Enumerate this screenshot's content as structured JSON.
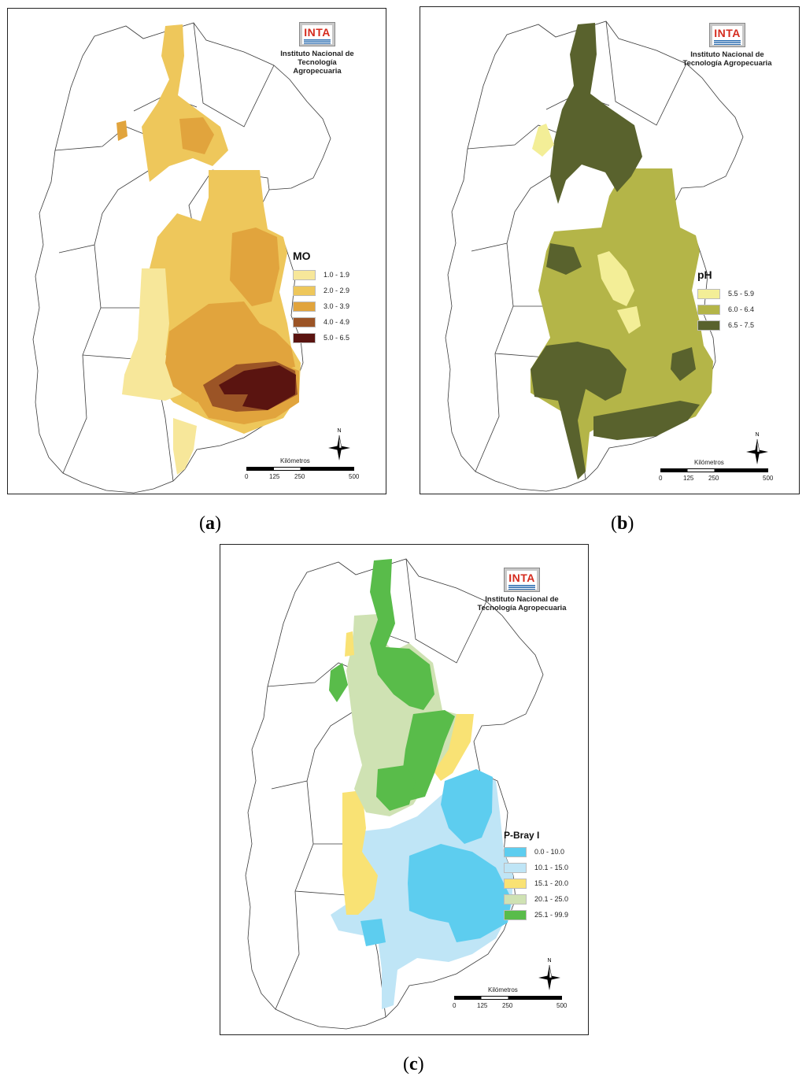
{
  "institution": {
    "logo_text": "INTA",
    "name_line1": "Instituto Nacional de",
    "name_line2": "Tecnología Agropecuaria"
  },
  "scale_bar": {
    "title": "Kilómetros",
    "ticks": [
      "0",
      "125",
      "250",
      "500"
    ]
  },
  "north_label": "N",
  "maps": [
    {
      "id": "a",
      "caption_open": "(",
      "caption_letter": "a",
      "caption_close": ")",
      "legend_title": "MO",
      "classes": [
        {
          "label": "1.0 - 1.9",
          "color": "#f7e79a"
        },
        {
          "label": "2.0 - 2.9",
          "color": "#eec75b"
        },
        {
          "label": "3.0 - 3.9",
          "color": "#e1a43d"
        },
        {
          "label": "4.0 - 4.9",
          "color": "#9b5426"
        },
        {
          "label": "5.0 - 6.5",
          "color": "#5a1410"
        }
      ]
    },
    {
      "id": "b",
      "caption_open": "(",
      "caption_letter": "b",
      "caption_close": ")",
      "legend_title": "pH",
      "classes": [
        {
          "label": "5.5 - 5.9",
          "color": "#f3ee97"
        },
        {
          "label": "6.0 - 6.4",
          "color": "#b4b548"
        },
        {
          "label": "6.5 - 7.5",
          "color": "#59622d"
        }
      ]
    },
    {
      "id": "c",
      "caption_open": "(",
      "caption_letter": "c",
      "caption_close": ")",
      "legend_title": "P-Bray I",
      "classes": [
        {
          "label": "0.0 - 10.0",
          "color": "#5dcdef"
        },
        {
          "label": "10.1 - 15.0",
          "color": "#bfe5f6"
        },
        {
          "label": "15.1 - 20.0",
          "color": "#f9e274"
        },
        {
          "label": "20.1 - 25.0",
          "color": "#cfe2b3"
        },
        {
          "label": "25.1 - 99.9",
          "color": "#59bc4a"
        }
      ]
    }
  ]
}
